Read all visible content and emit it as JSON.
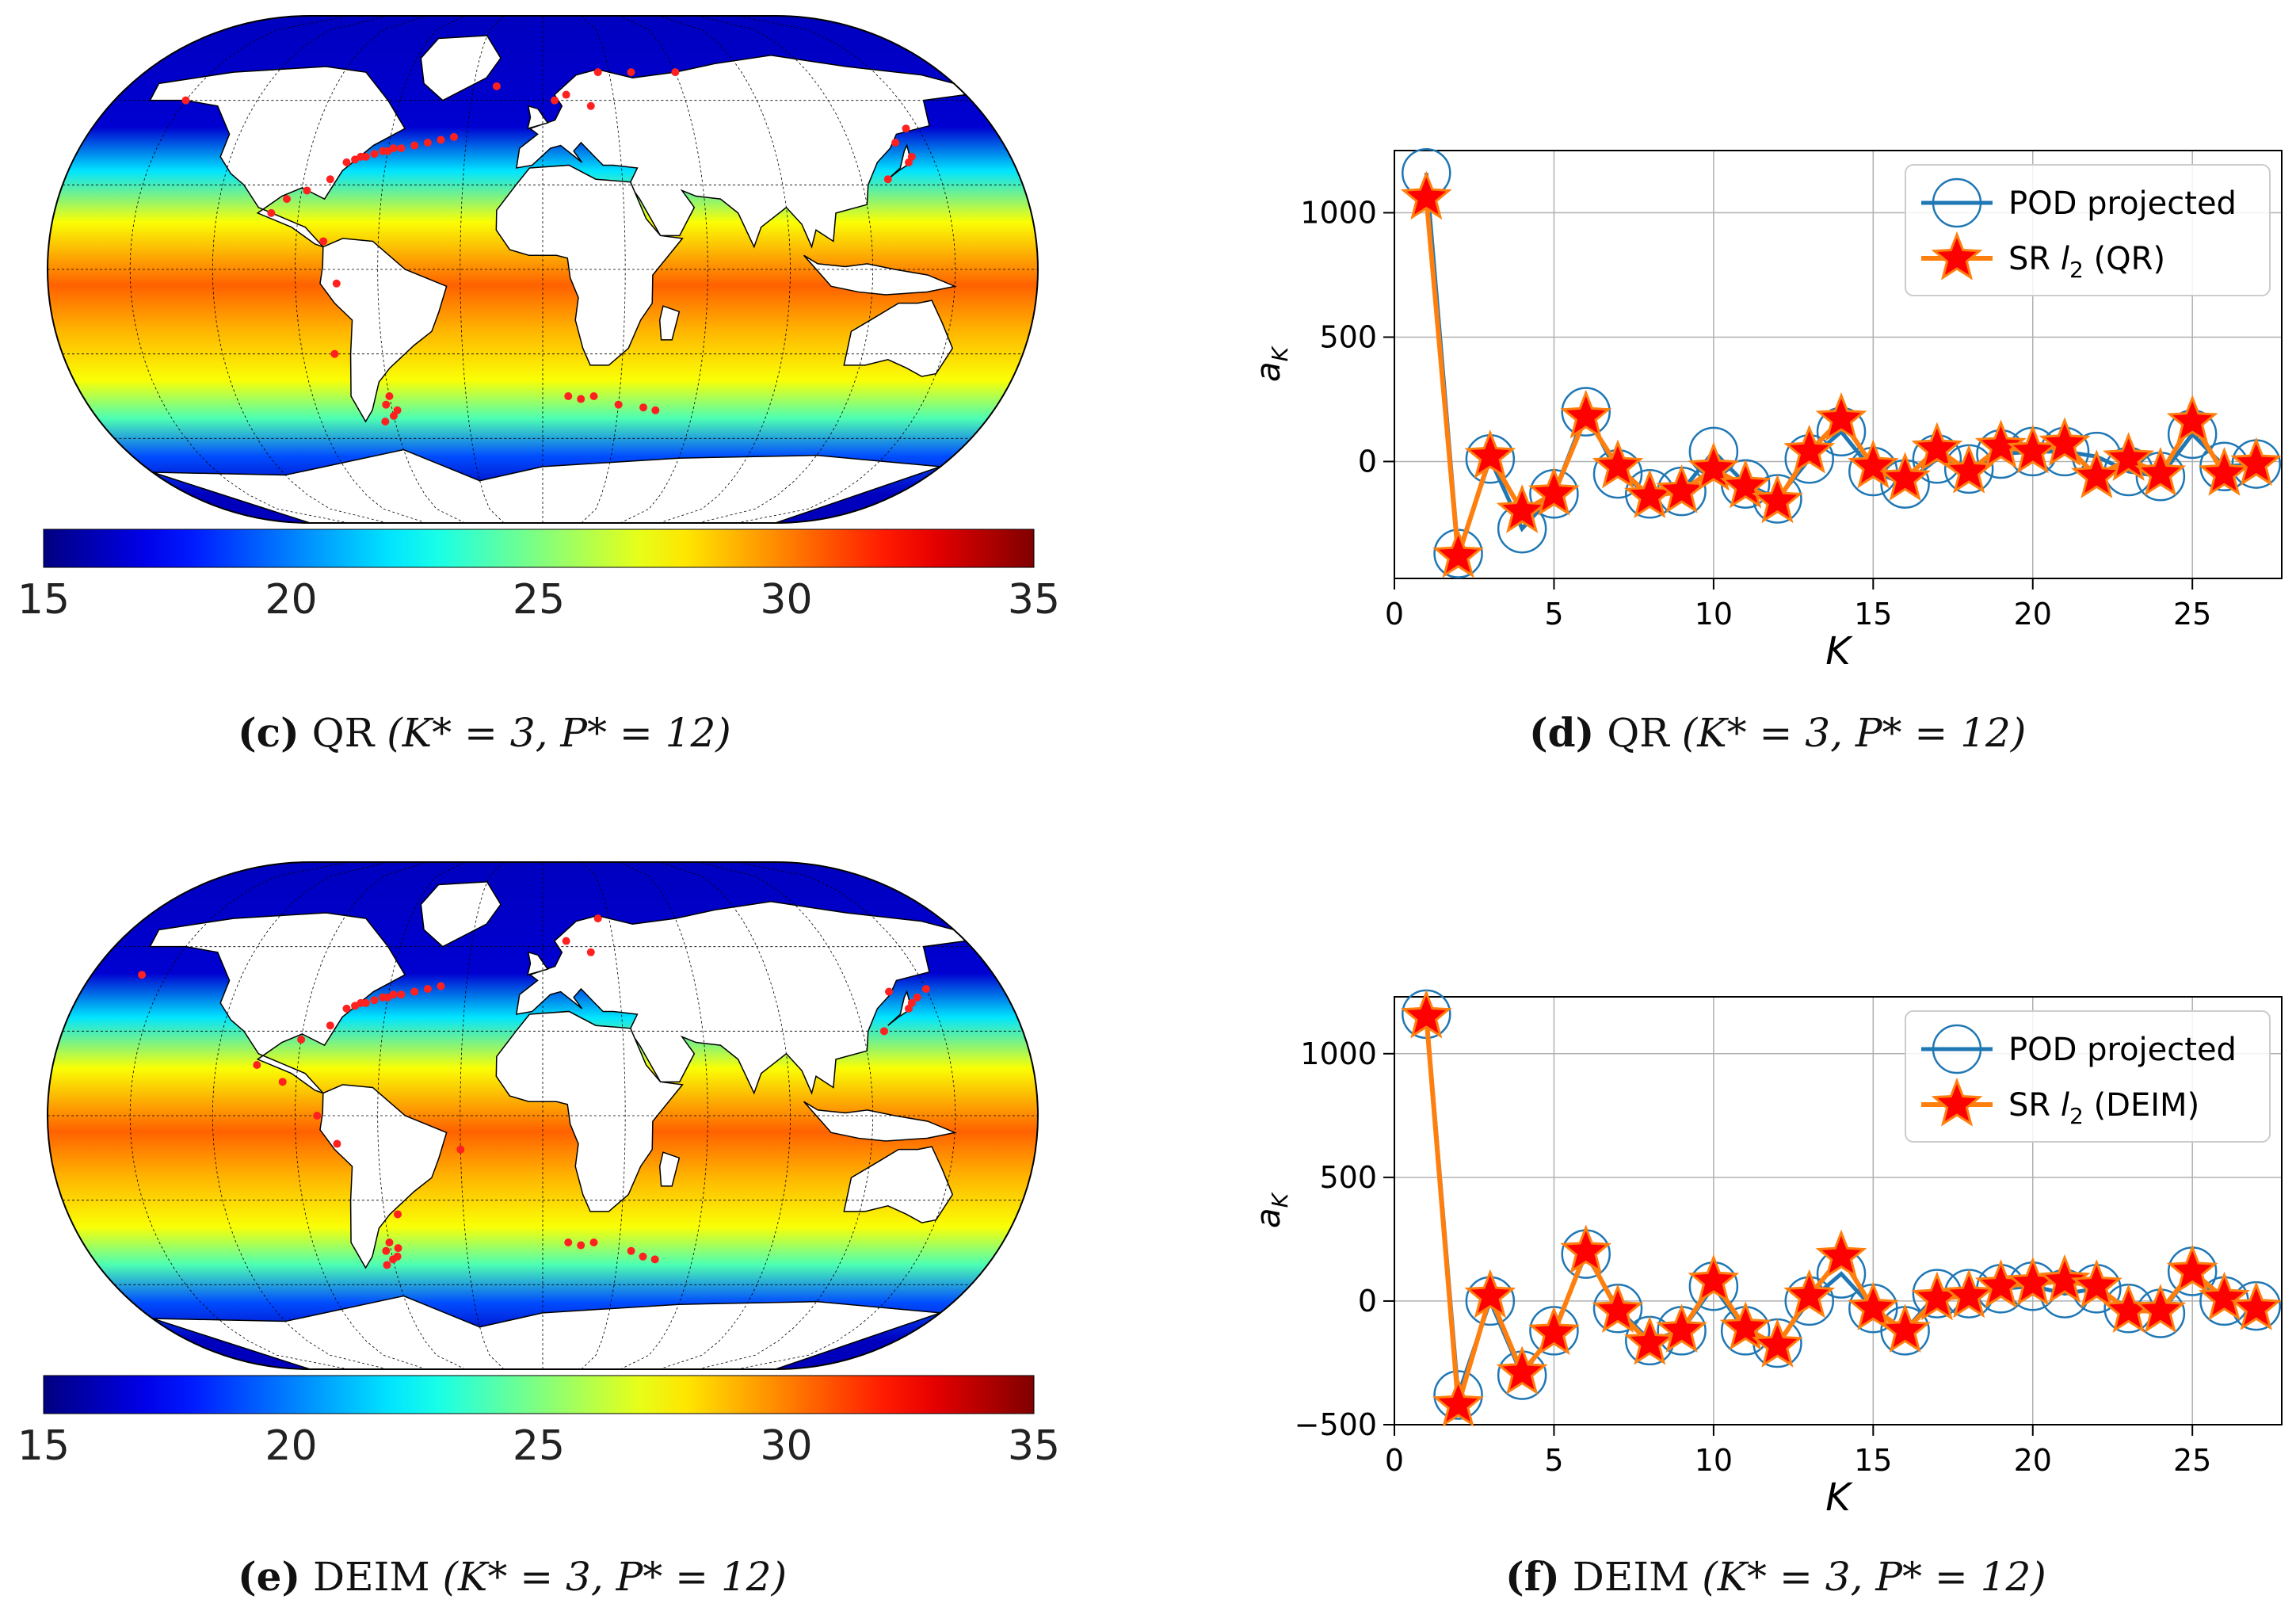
{
  "colors": {
    "pod": "#1f77b4",
    "sr_line": "#ff7f0e",
    "sr_star_fill": "#ff0000",
    "sensor": "#ff2020",
    "land": "#ffffff",
    "ocean_cold": "#0a1aa0"
  },
  "panels": {
    "c": {
      "caption_letter": "(c)",
      "caption_method": "QR",
      "caption_params": "(K* = 3, P* = 12)"
    },
    "d": {
      "caption_letter": "(d)",
      "caption_method": "QR",
      "caption_params": "(K* = 3, P* = 12)"
    },
    "e": {
      "caption_letter": "(e)",
      "caption_method": "DEIM",
      "caption_params": "(K* = 3, P* = 12)"
    },
    "f": {
      "caption_letter": "(f)",
      "caption_method": "DEIM",
      "caption_params": "(K* = 3, P* = 12)"
    }
  },
  "colorbar": {
    "min": 15,
    "max": 35,
    "ticks": [
      "15",
      "20",
      "25",
      "30",
      "35"
    ]
  },
  "chart_data": [
    {
      "id": "d",
      "type": "line",
      "xlabel": "K",
      "ylabel": "a_K",
      "xlim": [
        0,
        27.8
      ],
      "ylim": [
        -470,
        1250
      ],
      "xticks": [
        0,
        5,
        10,
        15,
        20,
        25
      ],
      "yticks": [
        0,
        500,
        1000
      ],
      "grid": true,
      "legend_position": "top-right",
      "x": [
        1,
        2,
        3,
        4,
        5,
        6,
        7,
        8,
        9,
        10,
        11,
        12,
        13,
        14,
        15,
        16,
        17,
        18,
        19,
        20,
        21,
        22,
        23,
        24,
        25,
        26,
        27
      ],
      "series": [
        {
          "name": "POD projected",
          "marker": "circle",
          "values": [
            1160,
            -370,
            10,
            -270,
            -130,
            200,
            -50,
            -130,
            -120,
            40,
            -90,
            -150,
            10,
            120,
            -40,
            -90,
            10,
            -30,
            30,
            40,
            40,
            20,
            -40,
            -60,
            110,
            -20,
            -10
          ]
        },
        {
          "name": "SR",
          "name_sub": "l",
          "name_subscript": "2",
          "name_suffix": "(QR)",
          "marker": "star",
          "values": [
            1060,
            -380,
            20,
            -200,
            -130,
            180,
            -20,
            -140,
            -120,
            -30,
            -100,
            -160,
            40,
            170,
            -20,
            -70,
            50,
            -40,
            60,
            40,
            70,
            -60,
            10,
            -50,
            160,
            -50,
            -10
          ]
        }
      ]
    },
    {
      "id": "f",
      "type": "line",
      "xlabel": "K",
      "ylabel": "a_K",
      "xlim": [
        0,
        27.8
      ],
      "ylim": [
        -500,
        1230
      ],
      "xticks": [
        0,
        5,
        10,
        15,
        20,
        25
      ],
      "yticks": [
        -500,
        0,
        500,
        1000
      ],
      "grid": true,
      "legend_position": "top-right",
      "x": [
        1,
        2,
        3,
        4,
        5,
        6,
        7,
        8,
        9,
        10,
        11,
        12,
        13,
        14,
        15,
        16,
        17,
        18,
        19,
        20,
        21,
        22,
        23,
        24,
        25,
        26,
        27
      ],
      "series": [
        {
          "name": "POD projected",
          "marker": "circle",
          "values": [
            1160,
            -380,
            0,
            -300,
            -120,
            190,
            -30,
            -160,
            -120,
            60,
            -120,
            -170,
            0,
            110,
            -30,
            -120,
            30,
            30,
            50,
            60,
            30,
            50,
            -30,
            -50,
            120,
            0,
            -20
          ]
        },
        {
          "name": "SR",
          "name_sub": "l",
          "name_subscript": "2",
          "name_suffix": "(DEIM)",
          "marker": "star",
          "values": [
            1150,
            -420,
            20,
            -290,
            -130,
            200,
            -40,
            -170,
            -120,
            80,
            -110,
            -180,
            20,
            180,
            -30,
            -120,
            10,
            20,
            60,
            70,
            80,
            60,
            -40,
            -40,
            120,
            10,
            -30
          ]
        }
      ]
    }
  ],
  "maps": [
    {
      "id": "c",
      "sensors_lonlat": [
        [
          -75,
          38
        ],
        [
          -70,
          40
        ],
        [
          -65,
          41
        ],
        [
          -60,
          42
        ],
        [
          -55,
          43
        ],
        [
          -50,
          44
        ],
        [
          -45,
          45
        ],
        [
          -72,
          39
        ],
        [
          -68,
          40
        ],
        [
          -62,
          42
        ],
        [
          -58,
          43
        ],
        [
          -40,
          46
        ],
        [
          -35,
          47
        ],
        [
          -80,
          32
        ],
        [
          -95,
          25
        ],
        [
          -100,
          20
        ],
        [
          -88,
          28
        ],
        [
          -80,
          10
        ],
        [
          -75,
          -5
        ],
        [
          -78,
          -30
        ],
        [
          -60,
          -45
        ],
        [
          -62,
          -48
        ],
        [
          -58,
          -50
        ],
        [
          -60,
          -52
        ],
        [
          -64,
          -54
        ],
        [
          10,
          -45
        ],
        [
          15,
          -46
        ],
        [
          20,
          -45
        ],
        [
          30,
          -48
        ],
        [
          40,
          -49
        ],
        [
          45,
          -50
        ],
        [
          140,
          38
        ],
        [
          142,
          40
        ],
        [
          138,
          45
        ],
        [
          145,
          50
        ],
        [
          130,
          32
        ],
        [
          5,
          60
        ],
        [
          10,
          62
        ],
        [
          20,
          58
        ],
        [
          -20,
          65
        ],
        [
          25,
          70
        ],
        [
          40,
          70
        ],
        [
          60,
          70
        ],
        [
          -150,
          60
        ]
      ]
    },
    {
      "id": "e",
      "sensors_lonlat": [
        [
          -75,
          38
        ],
        [
          -70,
          40
        ],
        [
          -65,
          41
        ],
        [
          -60,
          42
        ],
        [
          -55,
          43
        ],
        [
          -50,
          44
        ],
        [
          -45,
          45
        ],
        [
          -72,
          39
        ],
        [
          -68,
          40
        ],
        [
          -62,
          42
        ],
        [
          -58,
          43
        ],
        [
          -40,
          46
        ],
        [
          -80,
          32
        ],
        [
          -90,
          27
        ],
        [
          -105,
          18
        ],
        [
          -95,
          12
        ],
        [
          -82,
          0
        ],
        [
          -75,
          -10
        ],
        [
          -30,
          -12
        ],
        [
          -55,
          -35
        ],
        [
          -60,
          -45
        ],
        [
          -62,
          -48
        ],
        [
          -58,
          -50
        ],
        [
          -60,
          -51
        ],
        [
          -63,
          -53
        ],
        [
          -57,
          -47
        ],
        [
          10,
          -45
        ],
        [
          15,
          -46
        ],
        [
          20,
          -45
        ],
        [
          35,
          -48
        ],
        [
          40,
          -50
        ],
        [
          45,
          -51
        ],
        [
          140,
          38
        ],
        [
          142,
          40
        ],
        [
          145,
          42
        ],
        [
          135,
          44
        ],
        [
          128,
          30
        ],
        [
          150,
          45
        ],
        [
          10,
          62
        ],
        [
          20,
          58
        ],
        [
          25,
          70
        ],
        [
          -160,
          50
        ]
      ]
    }
  ]
}
